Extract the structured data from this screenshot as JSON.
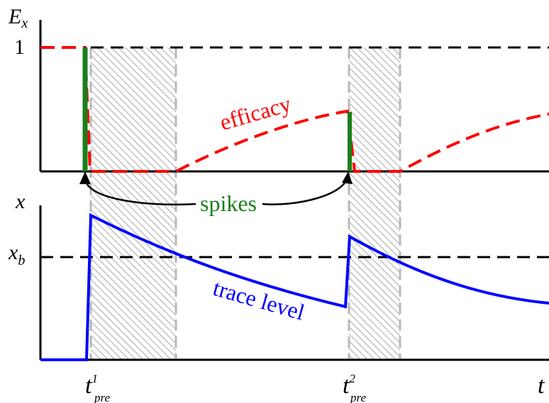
{
  "top_axis": {
    "ylabel_main": "E",
    "ylabel_sub": "x",
    "tick_one": "1"
  },
  "bottom_axis": {
    "ylabel": "x",
    "threshold_main": "x",
    "threshold_sub": "b"
  },
  "time_axis": {
    "xlabel": "t",
    "spike1_main": "t",
    "spike1_sup": "1",
    "spike1_sub": "pre",
    "spike2_main": "t",
    "spike2_sup": "2",
    "spike2_sub": "pre"
  },
  "annotations": {
    "efficacy": "efficacy",
    "spikes": "spikes",
    "trace": "trace level"
  },
  "colors": {
    "efficacy": "#ff0000",
    "spikes": "#1a7f1a",
    "trace": "#0000ff",
    "hatch": "#b0b0b0",
    "axis": "#000000"
  }
}
